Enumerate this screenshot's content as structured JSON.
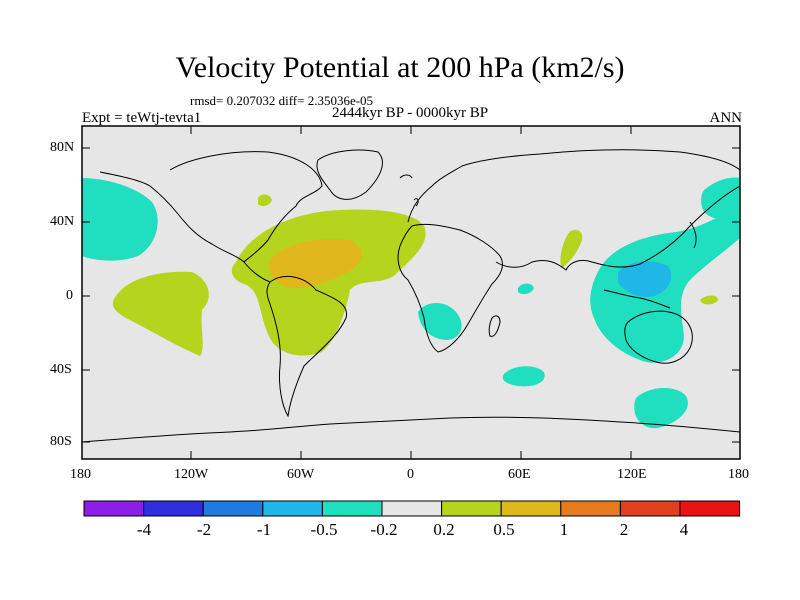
{
  "title": "Velocity Potential at 200 hPa (km2/s)",
  "stats": "rmsd= 0.207032 diff= 2.35036e-05",
  "left_label": "Expt = teWtj-tevta1",
  "center_label": "2444kyr BP - 0000kyr BP",
  "right_label": "ANN",
  "lat_ticks": [
    "80N",
    "40N",
    "0",
    "40S",
    "80S"
  ],
  "lon_ticks": [
    "180",
    "120W",
    "60W",
    "0",
    "60E",
    "120E",
    "180"
  ],
  "colorbar": {
    "colors": [
      "#8c1ee8",
      "#2e2edc",
      "#1e7be0",
      "#1fb6e8",
      "#20dfc0",
      "#e6e6e6",
      "#b4d41e",
      "#e0b81e",
      "#e87a1e",
      "#e0401e",
      "#e81414"
    ],
    "labels": [
      "-4",
      "-2",
      "-1",
      "-0.5",
      "-0.2",
      "0.2",
      "0.5",
      "1",
      "2",
      "4"
    ]
  },
  "colors": {
    "land_bg": "#e6e6e6",
    "neg1": "#20dfc0",
    "neg2": "#1fb6e8",
    "pos1": "#b4d41e",
    "pos2": "#e0b81e"
  }
}
